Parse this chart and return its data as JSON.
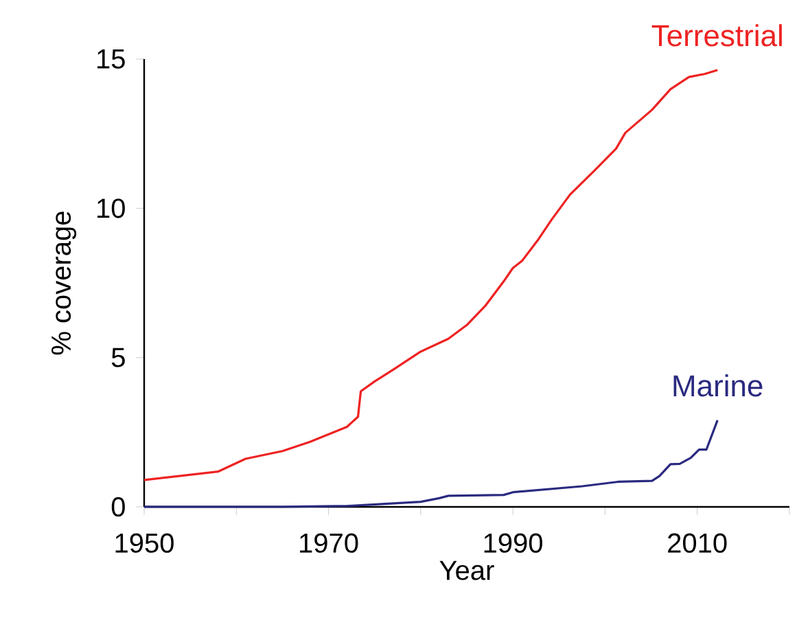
{
  "chart_data": {
    "type": "line",
    "xlabel": "Year",
    "ylabel": "% coverage",
    "xlim": [
      1950,
      2020
    ],
    "ylim": [
      0,
      15
    ],
    "xticks": [
      1950,
      {
        "value": 1960,
        "label": null
      },
      1970,
      {
        "value": 1980,
        "label": null
      },
      1990,
      {
        "value": 2000,
        "label": null
      },
      2010,
      {
        "value": 2020,
        "label": null
      }
    ],
    "yticks": [
      0,
      5,
      10,
      15
    ],
    "grid": false,
    "legend": false,
    "marker": "none",
    "line_style": "solid",
    "series": [
      {
        "name": "Terrestrial",
        "color": "#ee2222",
        "x": [
          1950,
          1958,
          1961,
          1965,
          1968,
          1972,
          1973.2,
          1973.5,
          1975,
          1977,
          1980,
          1983,
          1985,
          1987,
          1989,
          1990,
          1991,
          1992.7,
          1994.2,
          1996.2,
          1999,
          2001.2,
          2002.2,
          2005.1,
          2007.1,
          2009.1,
          2010.8,
          2012.2
        ],
        "values": [
          0.9,
          1.18,
          1.61,
          1.87,
          2.18,
          2.68,
          3.02,
          3.87,
          4.2,
          4.59,
          5.2,
          5.63,
          6.09,
          6.73,
          7.55,
          8.0,
          8.24,
          8.93,
          9.62,
          10.46,
          11.31,
          12.0,
          12.53,
          13.3,
          13.99,
          14.4,
          14.5,
          14.63
        ]
      },
      {
        "name": "Marine",
        "color": "#2a2a80",
        "x": [
          1950,
          1965,
          1972,
          1980,
          1982,
          1983,
          1989,
          1990,
          1997.5,
          2001.4,
          2005.1,
          2005.9,
          2007.1,
          2008.1,
          2009.3,
          2010.2,
          2011,
          2012.2
        ],
        "values": [
          0,
          0,
          0.03,
          0.17,
          0.29,
          0.37,
          0.4,
          0.49,
          0.69,
          0.84,
          0.87,
          1.03,
          1.43,
          1.44,
          1.64,
          1.92,
          1.92,
          2.9
        ]
      }
    ]
  }
}
